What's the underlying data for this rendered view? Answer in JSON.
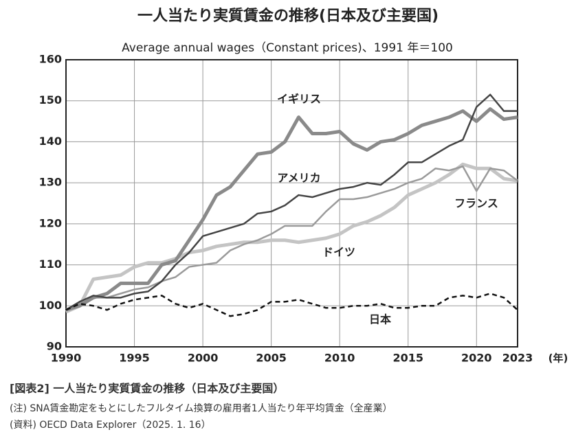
{
  "chart_data": {
    "type": "line",
    "title": "一人当たり実質賃金の推移(日本及び主要国)",
    "subtitle": "Average annual wages（Constant prices)、1991 年＝100",
    "x_label": "(年)",
    "x": [
      1990,
      1991,
      1992,
      1993,
      1994,
      1995,
      1996,
      1997,
      1998,
      1999,
      2000,
      2001,
      2002,
      2003,
      2004,
      2005,
      2006,
      2007,
      2008,
      2009,
      2010,
      2011,
      2012,
      2013,
      2014,
      2015,
      2016,
      2017,
      2018,
      2019,
      2020,
      2021,
      2022,
      2023
    ],
    "xlim": [
      1990,
      2023
    ],
    "xticks": [
      1990,
      1995,
      2000,
      2005,
      2010,
      2015,
      2020,
      2023
    ],
    "ylim": [
      90,
      160
    ],
    "yticks": [
      90,
      100,
      110,
      120,
      130,
      140,
      150,
      160
    ],
    "grid": true,
    "series": [
      {
        "name": "イギリス",
        "color": "#8a8a8a",
        "line_width": 5,
        "dashed": false,
        "values": [
          99,
          100,
          102,
          103,
          105.5,
          105.5,
          105.5,
          110,
          111,
          116,
          121,
          127,
          129,
          133,
          137,
          137.5,
          140,
          146,
          142,
          142,
          142.5,
          139.5,
          138,
          140,
          140.5,
          142,
          144,
          145,
          146,
          147.5,
          145,
          148,
          145.5,
          146
        ]
      },
      {
        "name": "アメリカ",
        "color": "#444444",
        "line_width": 2.5,
        "dashed": false,
        "values": [
          99,
          101,
          102.5,
          102,
          102,
          103,
          103.5,
          106,
          110,
          113,
          117,
          118,
          119,
          120,
          122.5,
          123,
          124.5,
          127,
          126.5,
          127.5,
          128.5,
          129,
          130,
          129.5,
          132,
          135,
          135,
          137,
          139,
          140.5,
          148.5,
          151.5,
          147.5,
          147.5
        ]
      },
      {
        "name": "フランス",
        "color": "#9a9a9a",
        "line_width": 2.5,
        "dashed": false,
        "values": [
          99,
          100.5,
          102,
          102,
          103,
          104,
          104.5,
          106,
          107,
          109.5,
          110,
          110.5,
          113.5,
          115,
          116,
          117.5,
          119.5,
          119.5,
          119.5,
          123,
          126,
          126,
          126.5,
          127.5,
          128.5,
          130,
          131,
          133.5,
          133,
          134,
          128,
          133.5,
          133,
          130.5
        ]
      },
      {
        "name": "ドイツ",
        "color": "#c4c4c4",
        "line_width": 5,
        "dashed": false,
        "values": [
          98.5,
          100,
          106.5,
          107,
          107.5,
          109.5,
          110.5,
          110.5,
          111.5,
          113,
          113.5,
          114.5,
          115,
          115.5,
          115.5,
          116,
          116,
          115.5,
          116,
          116.5,
          117.5,
          119.5,
          120.5,
          122,
          124,
          127,
          128.5,
          130,
          132,
          134.5,
          133.5,
          133.5,
          131,
          130.5
        ]
      },
      {
        "name": "日本",
        "color": "#111111",
        "line_width": 2.5,
        "dashed": true,
        "values": [
          99,
          100.5,
          100,
          99,
          100.5,
          101.5,
          102,
          102.5,
          100.5,
          99.5,
          100.5,
          99,
          97.5,
          98,
          99,
          101,
          101,
          101.5,
          100.5,
          99.5,
          99.5,
          100,
          100,
          100.5,
          99.5,
          99.5,
          100,
          100,
          102,
          102.5,
          102,
          103,
          102,
          99
        ]
      }
    ]
  },
  "caption": "[図表2] 一人当たり実質賃金の推移（日本及び主要国）",
  "note": "(注) SNA賃金勘定をもとにしたフルタイム換算の雇用者1人当たり年平均賃金（全産業）",
  "source": "(資料) OECD Data Explorer（2025. 1. 16）"
}
